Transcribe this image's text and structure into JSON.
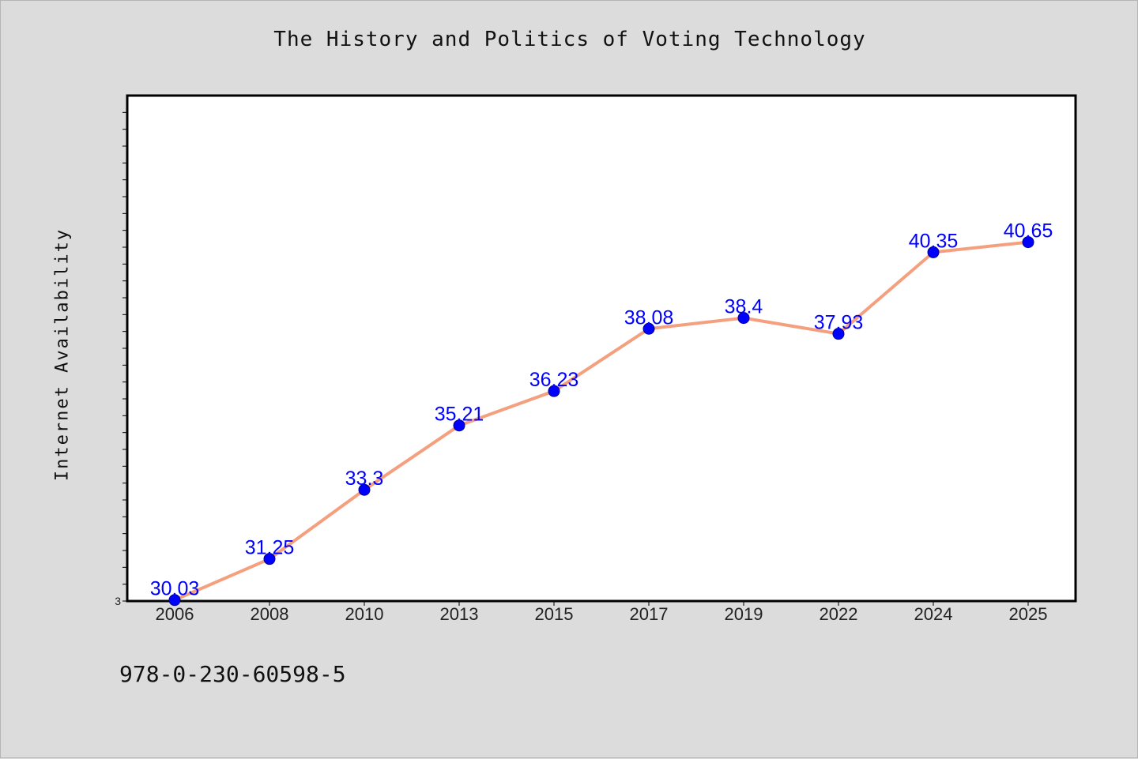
{
  "chart_data": {
    "type": "line",
    "title": "The History and Politics of Voting Technology",
    "xlabel": "",
    "ylabel": "Internet Availability",
    "categories": [
      "2006",
      "2008",
      "2010",
      "2013",
      "2015",
      "2017",
      "2019",
      "2022",
      "2024",
      "2025"
    ],
    "series": [
      {
        "values": [
          30.03,
          31.25,
          33.3,
          35.21,
          36.23,
          38.08,
          38.4,
          37.93,
          40.35,
          40.65
        ]
      }
    ],
    "ylim": [
      30,
      45
    ],
    "y_tick_labels": [
      "3"
    ],
    "data_labels": [
      "30.03",
      "31.25",
      "33.3",
      "35.21",
      "36.23",
      "38.08",
      "38.4",
      "37.93",
      "40.35",
      "40.65"
    ],
    "grid": false,
    "line_color": "#f4a07f",
    "marker_color": "#0000ff",
    "label_color": "#0000ff",
    "plot_background": "#ffffff",
    "page_background": "#dcdcdc"
  },
  "footer": {
    "code": "978-0-230-60598-5"
  }
}
